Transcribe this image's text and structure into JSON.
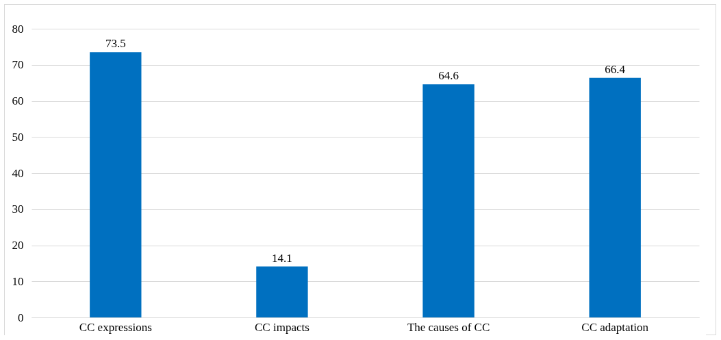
{
  "chart_data": {
    "type": "bar",
    "categories": [
      "CC expressions",
      "CC impacts",
      "The causes of CC",
      "CC adaptation"
    ],
    "values": [
      73.5,
      14.1,
      64.6,
      66.4
    ],
    "color": "#0070c0",
    "ylim": [
      0,
      80
    ],
    "yticks": [
      0,
      10,
      20,
      30,
      40,
      50,
      60,
      70,
      80
    ],
    "grid": "y",
    "data_labels": true
  }
}
